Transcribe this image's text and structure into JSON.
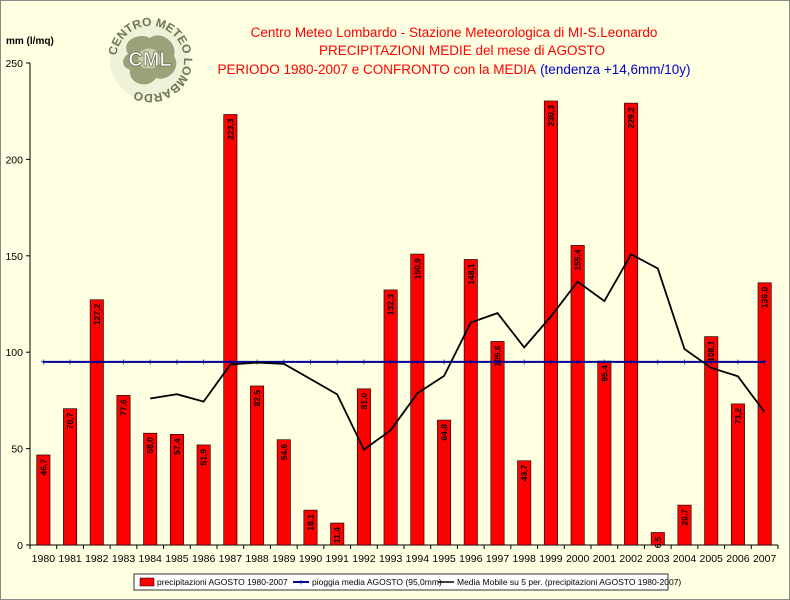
{
  "chart_data": {
    "type": "bar",
    "title_lines": [
      "Centro Meteo Lombardo - Stazione Meteorologica di MI-S.Leonardo",
      "PRECIPITAZIONI MEDIE del mese di AGOSTO",
      "PERIODO 1980-2007 e CONFRONTO con la MEDIA"
    ],
    "trend_note": "(tendenza +14,6mm/10y)",
    "ylabel": "mm (l/mq)",
    "ylim": [
      0,
      250
    ],
    "yticks": [
      0,
      50,
      100,
      150,
      200,
      250
    ],
    "categories": [
      "1980",
      "1981",
      "1982",
      "1983",
      "1984",
      "1985",
      "1986",
      "1987",
      "1988",
      "1989",
      "1990",
      "1991",
      "1992",
      "1993",
      "1994",
      "1995",
      "1996",
      "1997",
      "1998",
      "1999",
      "2000",
      "2001",
      "2002",
      "2003",
      "2004",
      "2005",
      "2006",
      "2007"
    ],
    "series": [
      {
        "name": "precipitazioni AGOSTO 1980-2007",
        "type": "bar",
        "color": "#ff0000",
        "values": [
          46.7,
          70.7,
          127.2,
          77.6,
          58.0,
          57.4,
          51.9,
          223.3,
          82.5,
          54.6,
          18.1,
          11.4,
          81.0,
          132.3,
          150.9,
          64.8,
          148.1,
          105.6,
          43.7,
          230.3,
          155.4,
          95.4,
          229.2,
          6.5,
          20.7,
          108.1,
          73.2,
          136.0
        ],
        "labels": [
          "46,7",
          "70,7",
          "127,2",
          "77,6",
          "58,0",
          "57,4",
          "51,9",
          "223,3",
          "82,5",
          "54,6",
          "18,1",
          "11,4",
          "81,0",
          "132,3",
          "150,9",
          "64,8",
          "148,1",
          "105,6",
          "43,7",
          "230,3",
          "155,4",
          "95,4",
          "229,2",
          "6,5",
          "20,7",
          "108,1",
          "73,2",
          "136,0"
        ]
      },
      {
        "name": "pioggia media AGOSTO (95,0mm)",
        "type": "line",
        "color": "#000099",
        "value": 95.0
      },
      {
        "name": "Media Mobile su 5 per. (precipitazioni AGOSTO 1980-2007)",
        "type": "line",
        "color": "#000000",
        "values": [
          null,
          null,
          null,
          null,
          76.0,
          78.2,
          74.4,
          93.6,
          94.6,
          94.0,
          86.1,
          78.1,
          49.5,
          59.5,
          78.7,
          87.7,
          115.4,
          120.3,
          102.5,
          118.5,
          136.6,
          126.5,
          150.8,
          143.4,
          101.6,
          91.9,
          87.5,
          68.9
        ]
      }
    ],
    "grid": false,
    "legend": "bottom",
    "colors": {
      "background": "#ffffe1",
      "bars": "#ff0000",
      "mean": "#000099",
      "moving_avg": "#000000",
      "title": "#ff0000",
      "trend": "#0000cc"
    }
  },
  "logo": {
    "text_ring": "CENTRO METEO LOMBARDO",
    "center": "CML"
  }
}
